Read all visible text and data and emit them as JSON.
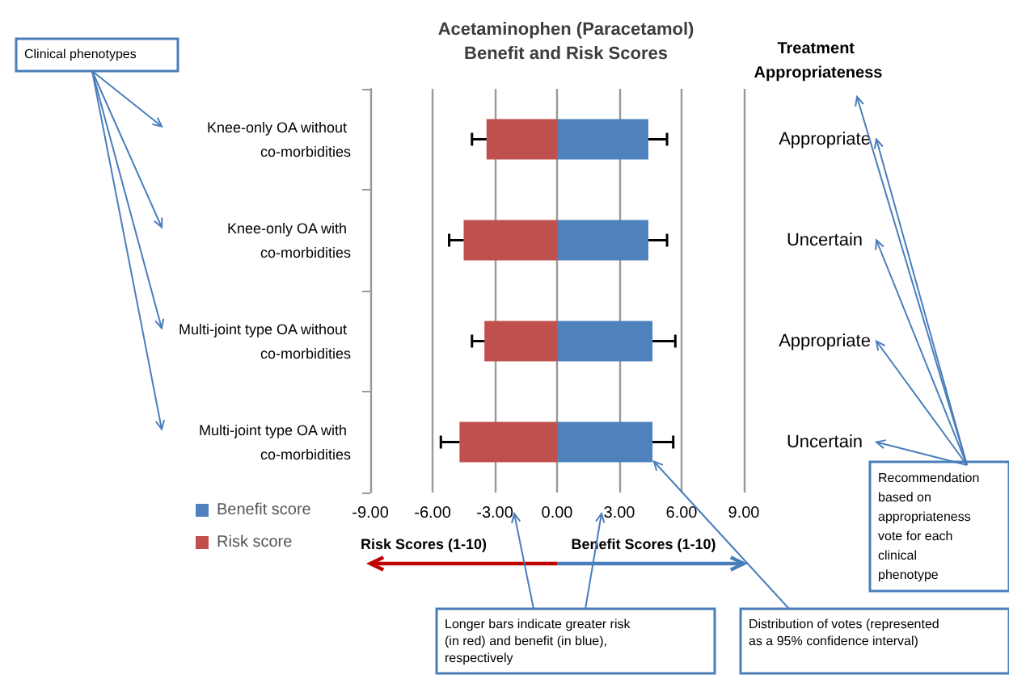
{
  "chart_data": {
    "type": "bar",
    "orientation": "horizontal",
    "stacked": true,
    "title": "Acetaminophen (Paracetamol)\nBenefit and Risk Scores",
    "categories": [
      "Knee-only OA without co-morbidities",
      "Knee-only OA with co-morbidities",
      "Multi-joint type OA without co-morbidities",
      "Multi-joint type OA with co-morbidities"
    ],
    "series": [
      {
        "name": "Benefit score",
        "color": "#4f81bd",
        "values": [
          4.4,
          4.4,
          4.6,
          4.6
        ],
        "errors": [
          [
            4.4,
            5.3
          ],
          [
            4.4,
            5.3
          ],
          [
            4.6,
            5.7
          ],
          [
            4.6,
            5.6
          ]
        ]
      },
      {
        "name": "Risk score",
        "color": "#c0504d",
        "values": [
          -3.4,
          -4.5,
          -3.5,
          -4.7
        ],
        "errors": [
          [
            -4.1,
            -3.4
          ],
          [
            -5.2,
            -4.5
          ],
          [
            -4.1,
            -3.5
          ],
          [
            -5.6,
            -4.7
          ]
        ]
      }
    ],
    "xlim": [
      -9,
      9
    ],
    "xticks": [
      {
        "value": -9,
        "label": "-9.00"
      },
      {
        "value": -6,
        "label": "-6.00"
      },
      {
        "value": -3,
        "label": "-3.00"
      },
      {
        "value": 0,
        "label": "0.00"
      },
      {
        "value": 3,
        "label": "3.00"
      },
      {
        "value": 6,
        "label": "6.00"
      },
      {
        "value": 9,
        "label": "9.00"
      }
    ],
    "grid": "x",
    "legend": "bottom left",
    "annotations": [
      "Treatment Appropriateness",
      "Appropriate",
      "Uncertain",
      "Appropriate",
      "Uncertain",
      "Clinical phenotypes",
      "Recommendation based on appropriateness vote for each clinical phenotype",
      "Risk Scores (1-10)",
      "Benefit Scores (1-10)",
      "Longer bars indicate greater risk (in red) and benefit (in blue), respectively",
      "Distribution of votes (represented as a 95% confidence interval)"
    ]
  }
}
